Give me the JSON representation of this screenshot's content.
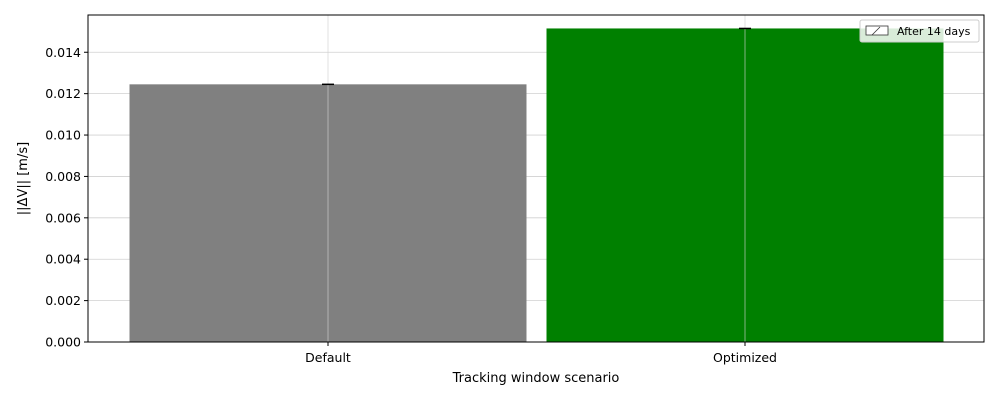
{
  "chart_data": {
    "type": "bar",
    "categories": [
      "Default",
      "Optimized"
    ],
    "values": [
      0.01245,
      0.01515
    ],
    "errors": [
      2e-05,
      2e-05
    ],
    "colors": [
      "#808080",
      "#008000"
    ],
    "xlabel": "Tracking window scenario",
    "ylabel": "||ΔV|| [m/s]",
    "ylim": [
      0,
      0.0158
    ],
    "yticks": [
      0.0,
      0.002,
      0.004,
      0.006,
      0.008,
      0.01,
      0.012,
      0.014
    ],
    "ytick_labels": [
      "0.000",
      "0.002",
      "0.004",
      "0.006",
      "0.008",
      "0.010",
      "0.012",
      "0.014"
    ],
    "grid": true,
    "legend": {
      "position": "top-right",
      "entries": [
        "After 14 days"
      ]
    }
  }
}
